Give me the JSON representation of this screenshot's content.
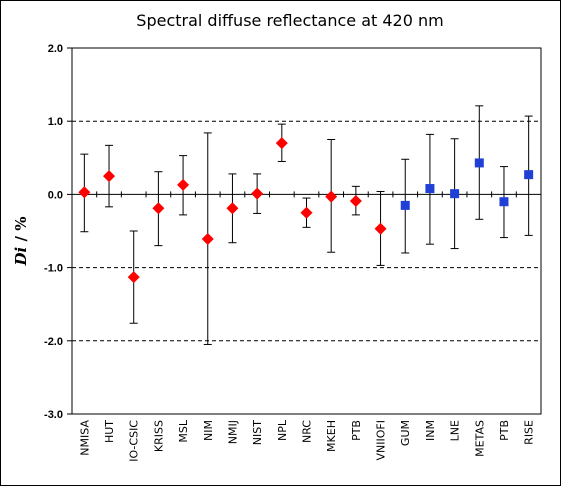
{
  "chart_data": {
    "type": "scatter",
    "title": "Spectral diffuse reflectance at 420 nm",
    "ylabel_italic": "Di",
    "ylabel_rest": " / %",
    "xlabel": "",
    "ylim": [
      -3.0,
      2.0
    ],
    "yticks": [
      "2.0",
      "1.0",
      "0.0",
      "-1.0",
      "-2.0",
      "-3.0"
    ],
    "ytick_values": [
      2.0,
      1.0,
      0.0,
      -1.0,
      -2.0,
      -3.0
    ],
    "dashed_gridlines": [
      1.0,
      -1.0,
      -2.0
    ],
    "legend": "none",
    "colors": {
      "diamond": "#ff0000",
      "square": "#1f3fd6",
      "errorbar": "#000000"
    },
    "categories": [
      "NMISA",
      "HUT",
      "IO-CSIC",
      "KRISS",
      "MSL",
      "NIM",
      "NMIJ",
      "NIST",
      "NPL",
      "NRC",
      "MKEH",
      "PTB",
      "VNIIOFI",
      "GUM",
      "INM",
      "LNE",
      "METAS",
      "PTB",
      "RISE"
    ],
    "series": [
      {
        "marker": "diamond",
        "color": "#ff0000",
        "points": [
          {
            "x": "NMISA",
            "y": 0.03,
            "low": -0.51,
            "high": 0.55
          },
          {
            "x": "HUT",
            "y": 0.25,
            "low": -0.17,
            "high": 0.67
          },
          {
            "x": "IO-CSIC",
            "y": -1.13,
            "low": -1.76,
            "high": -0.5
          },
          {
            "x": "KRISS",
            "y": -0.19,
            "low": -0.7,
            "high": 0.31
          },
          {
            "x": "MSL",
            "y": 0.13,
            "low": -0.28,
            "high": 0.53
          },
          {
            "x": "NIM",
            "y": -0.61,
            "low": -2.05,
            "high": 0.84
          },
          {
            "x": "NMIJ",
            "y": -0.19,
            "low": -0.66,
            "high": 0.28
          },
          {
            "x": "NIST",
            "y": 0.01,
            "low": -0.26,
            "high": 0.28
          },
          {
            "x": "NPL",
            "y": 0.7,
            "low": 0.45,
            "high": 0.96
          },
          {
            "x": "NRC",
            "y": -0.25,
            "low": -0.45,
            "high": -0.05
          },
          {
            "x": "MKEH",
            "y": -0.03,
            "low": -0.79,
            "high": 0.75
          },
          {
            "x": "PTB",
            "y": -0.09,
            "low": -0.28,
            "high": 0.11
          },
          {
            "x": "VNIIOFI",
            "y": -0.47,
            "low": -0.97,
            "high": 0.04
          }
        ]
      },
      {
        "marker": "square",
        "color": "#1f3fd6",
        "points": [
          {
            "x": "GUM",
            "y": -0.15,
            "low": -0.8,
            "high": 0.48
          },
          {
            "x": "INM",
            "y": 0.08,
            "low": -0.68,
            "high": 0.82
          },
          {
            "x": "LNE",
            "y": 0.01,
            "low": -0.74,
            "high": 0.76
          },
          {
            "x": "METAS",
            "y": 0.43,
            "low": -0.34,
            "high": 1.21
          },
          {
            "x": "PTB",
            "y": -0.1,
            "low": -0.59,
            "high": 0.38
          },
          {
            "x": "RISE",
            "y": 0.27,
            "low": -0.56,
            "high": 1.07
          }
        ]
      }
    ]
  }
}
